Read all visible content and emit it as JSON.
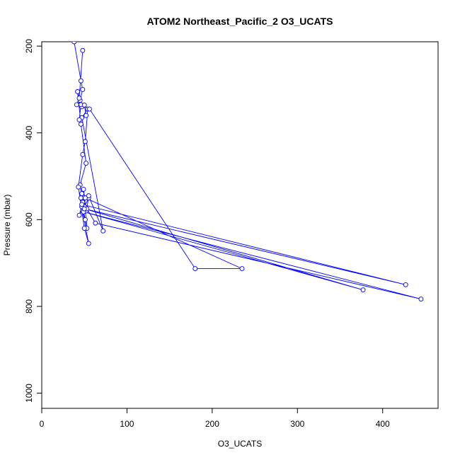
{
  "chart_data": {
    "type": "line",
    "title": "ATOM2 Northeast_Pacific_2 O3_UCATS",
    "xlabel": "O3_UCATS",
    "ylabel": "Pressure (mbar)",
    "xlim": [
      0,
      465
    ],
    "ylim": [
      1035,
      190
    ],
    "y_reversed": true,
    "grid": false,
    "legend": "none",
    "xticks": [
      0,
      100,
      200,
      300,
      400
    ],
    "yticks": [
      200,
      400,
      600,
      800,
      1000
    ],
    "series_color": "#0000ff",
    "marker": "open-circle",
    "series": [
      {
        "x": [
          38,
          46,
          48,
          45,
          47,
          42,
          46,
          52,
          45,
          48,
          44,
          50,
          47,
          55,
          48,
          51,
          46,
          53,
          49,
          52,
          47,
          55,
          50,
          43,
          48,
          51,
          54,
          47,
          72,
          55,
          53,
          63,
          445,
          49,
          377,
          50,
          427,
          47,
          51,
          235,
          180,
          56,
          46,
          44,
          52,
          50,
          41,
          44,
          48
        ],
        "y": [
          190,
          280,
          300,
          325,
          340,
          305,
          380,
          470,
          520,
          560,
          590,
          570,
          540,
          550,
          580,
          600,
          550,
          620,
          530,
          580,
          570,
          655,
          620,
          525,
          450,
          420,
          345,
          365,
          626,
          545,
          575,
          608,
          783,
          582,
          762,
          575,
          750,
          565,
          550,
          713,
          713,
          345,
          335,
          370,
          360,
          336,
          335,
          320,
          210
        ]
      }
    ]
  }
}
